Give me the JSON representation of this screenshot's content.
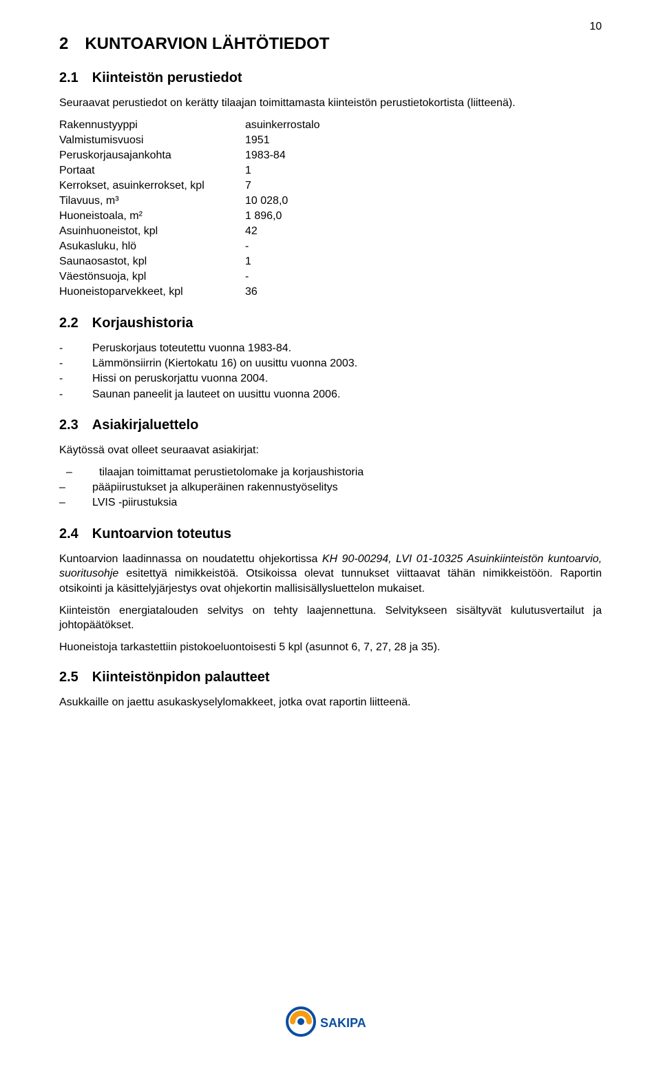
{
  "page_number": "10",
  "section2": {
    "heading": "2 KUNTOARVION LÄHTÖTIEDOT",
    "s21": {
      "heading": "2.1 Kiinteistön perustiedot",
      "intro": "Seuraavat perustiedot on kerätty tilaajan toimittamasta kiinteistön perustietokortista (liitteenä).",
      "rows": [
        {
          "label": "Rakennustyyppi",
          "value": "asuinkerrostalo"
        },
        {
          "label": "Valmistumisvuosi",
          "value": "1951"
        },
        {
          "label": "Peruskorjausajankohta",
          "value": "1983-84"
        },
        {
          "label": "Portaat",
          "value": "1"
        },
        {
          "label": "Kerrokset, asuinkerrokset, kpl",
          "value": "7"
        },
        {
          "label": "Tilavuus, m³",
          "value": "10 028,0"
        },
        {
          "label": "Huoneistoala, m²",
          "value": "1 896,0"
        },
        {
          "label": "Asuinhuoneistot, kpl",
          "value": "42"
        },
        {
          "label": "Asukasluku, hlö",
          "value": "-"
        },
        {
          "label": "Saunaosastot, kpl",
          "value": "1"
        },
        {
          "label": "Väestönsuoja, kpl",
          "value": "-"
        },
        {
          "label": "Huoneistoparvekkeet, kpl",
          "value": "36"
        }
      ]
    },
    "s22": {
      "heading": "2.2 Korjaushistoria",
      "items": [
        "Peruskorjaus toteutettu vuonna 1983-84.",
        "Lämmönsiirrin (Kiertokatu 16) on uusittu vuonna 2003.",
        "Hissi on peruskorjattu vuonna 2004.",
        "Saunan paneelit ja lauteet on uusittu vuonna 2006."
      ]
    },
    "s23": {
      "heading": "2.3 Asiakirjaluettelo",
      "intro": "Käytössä ovat olleet seuraavat asiakirjat:",
      "items": [
        "tilaajan toimittamat perustietolomake ja korjaushistoria",
        "pääpiirustukset ja alkuperäinen rakennustyöselitys",
        "LVIS -piirustuksia"
      ]
    },
    "s24": {
      "heading": "2.4 Kuntoarvion toteutus",
      "para1_pre": "Kuntoarvion laadinnassa on noudatettu ohjekortissa ",
      "para1_em": "KH 90-00294, LVI 01-10325 Asuinkiinteistön kuntoarvio, suoritusohje",
      "para1_post": " esitettyä nimikkeistöä. Otsikoissa olevat tunnukset viittaavat tähän nimikkeistöön. Raportin otsikointi ja käsittelyjärjestys ovat ohjekortin mallisisällysluettelon mukaiset.",
      "para2": "Kiinteistön energiatalouden selvitys on tehty laajennettuna. Selvitykseen sisältyvät kulutusvertailut ja johtopäätökset.",
      "para3": "Huoneistoja tarkastettiin pistokoeluontoisesti 5 kpl (asunnot 6, 7, 27, 28 ja 35)."
    },
    "s25": {
      "heading": "2.5 Kiinteistönpidon palautteet",
      "para": "Asukkaille on jaettu asukaskyselylomakkeet, jotka ovat raportin liitteenä."
    }
  },
  "logo": {
    "name": "SAKIPA",
    "colors": {
      "blue": "#0a4ea0",
      "orange": "#f39c12"
    }
  }
}
